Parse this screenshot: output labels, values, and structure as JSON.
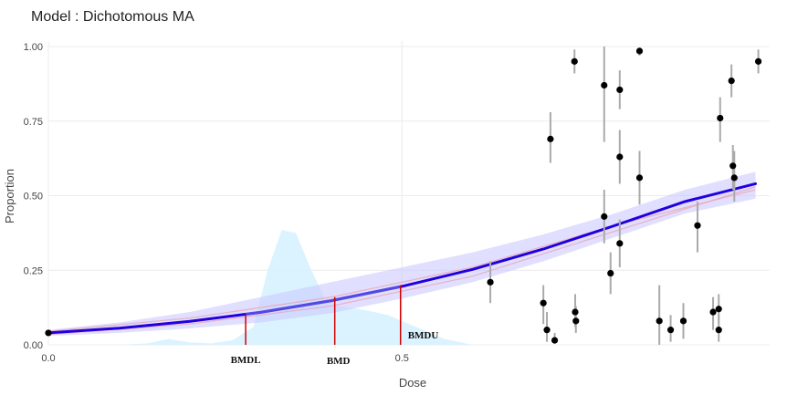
{
  "chart_data": {
    "type": "scatter",
    "title": "Model : Dichotomous MA",
    "xlabel": "Dose",
    "ylabel": "Proportion",
    "xlim": [
      0,
      1.02
    ],
    "ylim": [
      0,
      1
    ],
    "x_ticks": [
      {
        "value": 0,
        "label": "0.0"
      },
      {
        "value": 0.5,
        "label": "0.5"
      }
    ],
    "y_ticks": [
      {
        "value": 0,
        "label": "0.00"
      },
      {
        "value": 0.25,
        "label": "0.25"
      },
      {
        "value": 0.5,
        "label": "0.50"
      },
      {
        "value": 0.75,
        "label": "0.75"
      },
      {
        "value": 1,
        "label": "1.00"
      }
    ],
    "grid": true,
    "colors": {
      "ma_curve": "#2200dd",
      "ma_band": "#c9c4ff",
      "model_curve": "#e8a9b8",
      "density": "#d7f2ff",
      "points": "#000000",
      "error_bars": "#aaaaaa",
      "bmd_lines": "#d00000",
      "grid": "#ececec"
    },
    "observations": [
      {
        "x": 0.0,
        "y": 0.04,
        "lo": 0.04,
        "hi": 0.04
      },
      {
        "x": 0.625,
        "y": 0.21,
        "lo": 0.14,
        "hi": 0.28
      },
      {
        "x": 0.7,
        "y": 0.14,
        "lo": 0.07,
        "hi": 0.2
      },
      {
        "x": 0.705,
        "y": 0.05,
        "lo": 0.01,
        "hi": 0.11
      },
      {
        "x": 0.71,
        "y": 0.69,
        "lo": 0.61,
        "hi": 0.78
      },
      {
        "x": 0.716,
        "y": 0.015,
        "lo": 0.005,
        "hi": 0.04
      },
      {
        "x": 0.744,
        "y": 0.95,
        "lo": 0.91,
        "hi": 0.99
      },
      {
        "x": 0.745,
        "y": 0.11,
        "lo": 0.06,
        "hi": 0.17
      },
      {
        "x": 0.746,
        "y": 0.08,
        "lo": 0.04,
        "hi": 0.13
      },
      {
        "x": 0.786,
        "y": 0.87,
        "lo": 0.68,
        "hi": 1.0
      },
      {
        "x": 0.786,
        "y": 0.43,
        "lo": 0.34,
        "hi": 0.52
      },
      {
        "x": 0.795,
        "y": 0.24,
        "lo": 0.17,
        "hi": 0.31
      },
      {
        "x": 0.808,
        "y": 0.855,
        "lo": 0.79,
        "hi": 0.92
      },
      {
        "x": 0.808,
        "y": 0.63,
        "lo": 0.54,
        "hi": 0.72
      },
      {
        "x": 0.808,
        "y": 0.34,
        "lo": 0.26,
        "hi": 0.42
      },
      {
        "x": 0.836,
        "y": 0.985,
        "lo": 0.97,
        "hi": 0.995
      },
      {
        "x": 0.836,
        "y": 0.56,
        "lo": 0.47,
        "hi": 0.65
      },
      {
        "x": 0.864,
        "y": 0.08,
        "lo": 0.0,
        "hi": 0.2
      },
      {
        "x": 0.88,
        "y": 0.05,
        "lo": 0.01,
        "hi": 0.1
      },
      {
        "x": 0.898,
        "y": 0.08,
        "lo": 0.02,
        "hi": 0.14
      },
      {
        "x": 0.918,
        "y": 0.4,
        "lo": 0.31,
        "hi": 0.48
      },
      {
        "x": 0.94,
        "y": 0.11,
        "lo": 0.05,
        "hi": 0.16
      },
      {
        "x": 0.948,
        "y": 0.12,
        "lo": 0.07,
        "hi": 0.17
      },
      {
        "x": 0.948,
        "y": 0.05,
        "lo": 0.01,
        "hi": 0.1
      },
      {
        "x": 0.95,
        "y": 0.76,
        "lo": 0.68,
        "hi": 0.83
      },
      {
        "x": 0.966,
        "y": 0.885,
        "lo": 0.83,
        "hi": 0.94
      },
      {
        "x": 0.968,
        "y": 0.6,
        "lo": 0.52,
        "hi": 0.67
      },
      {
        "x": 0.97,
        "y": 0.56,
        "lo": 0.48,
        "hi": 0.65
      },
      {
        "x": 1.004,
        "y": 0.95,
        "lo": 0.91,
        "hi": 0.99
      }
    ],
    "ma_curve": {
      "x": [
        0,
        0.1,
        0.2,
        0.3,
        0.4,
        0.5,
        0.6,
        0.7,
        0.8,
        0.9,
        1.0
      ],
      "y": [
        0.04,
        0.056,
        0.079,
        0.109,
        0.148,
        0.196,
        0.253,
        0.321,
        0.399,
        0.48,
        0.54
      ],
      "lower": [
        0.03,
        0.04,
        0.055,
        0.075,
        0.106,
        0.155,
        0.21,
        0.28,
        0.36,
        0.44,
        0.49
      ],
      "upper": [
        0.05,
        0.075,
        0.11,
        0.16,
        0.21,
        0.26,
        0.31,
        0.37,
        0.44,
        0.52,
        0.58
      ]
    },
    "model_curves": [
      {
        "x": [
          0,
          0.2,
          0.4,
          0.6,
          0.8,
          1.0
        ],
        "y": [
          0.035,
          0.07,
          0.13,
          0.23,
          0.38,
          0.53
        ]
      },
      {
        "x": [
          0,
          0.2,
          0.4,
          0.6,
          0.8,
          1.0
        ],
        "y": [
          0.045,
          0.09,
          0.16,
          0.26,
          0.4,
          0.52
        ]
      }
    ],
    "bmd_density": {
      "x": [
        0.1,
        0.14,
        0.17,
        0.2,
        0.23,
        0.26,
        0.29,
        0.31,
        0.33,
        0.35,
        0.37,
        0.39,
        0.41,
        0.44,
        0.48,
        0.52,
        0.56,
        0.6
      ],
      "y": [
        0.0,
        0.005,
        0.02,
        0.008,
        0.005,
        0.015,
        0.06,
        0.25,
        0.385,
        0.375,
        0.26,
        0.16,
        0.13,
        0.12,
        0.1,
        0.06,
        0.02,
        0.0
      ]
    },
    "bmd_markers": [
      {
        "label": "BMDL",
        "x": 0.279,
        "y": 0.1
      },
      {
        "label": "BMD",
        "x": 0.405,
        "y": 0.16
      },
      {
        "label": "BMDU",
        "x": 0.498,
        "y": 0.2
      }
    ]
  }
}
